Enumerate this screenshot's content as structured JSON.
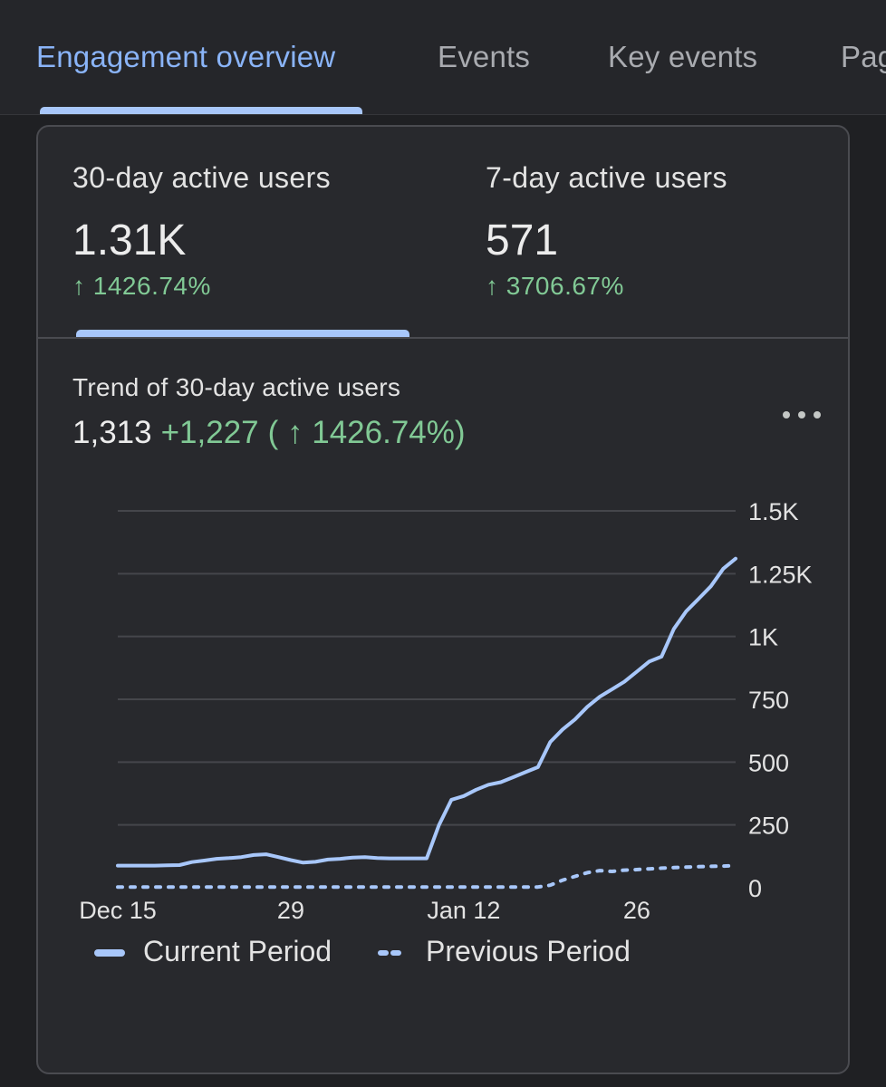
{
  "tabs": [
    {
      "label": "Engagement overview",
      "active": true
    },
    {
      "label": "Events",
      "active": false
    },
    {
      "label": "Key events",
      "active": false
    },
    {
      "label": "Pag",
      "active": false
    }
  ],
  "metrics": [
    {
      "label": "30-day active users",
      "value": "1.31K",
      "change": "↑ 1426.74%",
      "selected": true
    },
    {
      "label": "7-day active users",
      "value": "571",
      "change": "↑ 3706.67%",
      "selected": false
    }
  ],
  "trend": {
    "title": "Trend of 30-day active users",
    "value": "1,313",
    "delta": "+1,227",
    "percent": "( ↑ 1426.74%)"
  },
  "legend": {
    "current": "Current Period",
    "previous": "Previous Period"
  },
  "colors": {
    "accent": "#a8c7fa",
    "positive": "#81c995",
    "current_series": "#a8c7fa",
    "previous_series": "#a8c7fa"
  },
  "icons": {
    "more": "more-horiz-icon"
  },
  "chart_data": {
    "type": "line",
    "x": [
      "Dec 15",
      "Dec 16",
      "Dec 17",
      "Dec 18",
      "Dec 19",
      "Dec 20",
      "Dec 21",
      "Dec 22",
      "Dec 23",
      "Dec 24",
      "Dec 25",
      "Dec 26",
      "Dec 27",
      "Dec 28",
      "Dec 29",
      "Dec 30",
      "Dec 31",
      "Jan 1",
      "Jan 2",
      "Jan 3",
      "Jan 4",
      "Jan 5",
      "Jan 6",
      "Jan 7",
      "Jan 8",
      "Jan 9",
      "Jan 10",
      "Jan 11",
      "Jan 12",
      "Jan 13",
      "Jan 14",
      "Jan 15",
      "Jan 16",
      "Jan 17",
      "Jan 18",
      "Jan 19",
      "Jan 20",
      "Jan 21",
      "Jan 22",
      "Jan 23",
      "Jan 24",
      "Jan 25",
      "Jan 26",
      "Jan 27",
      "Jan 28",
      "Jan 29",
      "Jan 30",
      "Jan 31",
      "Feb 1",
      "Feb 2",
      "Feb 3"
    ],
    "x_tick_labels": [
      "Dec 15",
      "29",
      "Jan 12",
      "26"
    ],
    "y_ticks": [
      0,
      250,
      500,
      750,
      1000,
      1250,
      1500
    ],
    "y_tick_labels": [
      "0",
      "250",
      "500",
      "750",
      "1K",
      "1.25K",
      "1.5K"
    ],
    "ylim": [
      0,
      1500
    ],
    "y_axis_position": "right",
    "grid": true,
    "legend_position": "bottom-left",
    "series": [
      {
        "name": "Current Period",
        "style": "solid",
        "values": [
          88,
          88,
          88,
          88,
          89,
          90,
          102,
          108,
          115,
          118,
          122,
          130,
          133,
          122,
          110,
          100,
          103,
          112,
          115,
          120,
          122,
          118,
          117,
          117,
          117,
          117,
          250,
          350,
          365,
          390,
          410,
          420,
          440,
          460,
          480,
          580,
          630,
          670,
          720,
          760,
          790,
          820,
          860,
          900,
          920,
          1030,
          1100,
          1150,
          1200,
          1270,
          1310
        ]
      },
      {
        "name": "Previous Period",
        "style": "dotted",
        "values": [
          3,
          3,
          3,
          3,
          3,
          3,
          3,
          3,
          3,
          3,
          3,
          3,
          3,
          3,
          3,
          3,
          3,
          3,
          3,
          3,
          3,
          3,
          3,
          3,
          3,
          3,
          3,
          3,
          3,
          3,
          3,
          3,
          3,
          3,
          3,
          10,
          30,
          45,
          60,
          68,
          65,
          70,
          72,
          75,
          78,
          80,
          82,
          84,
          85,
          86,
          88
        ]
      }
    ]
  }
}
